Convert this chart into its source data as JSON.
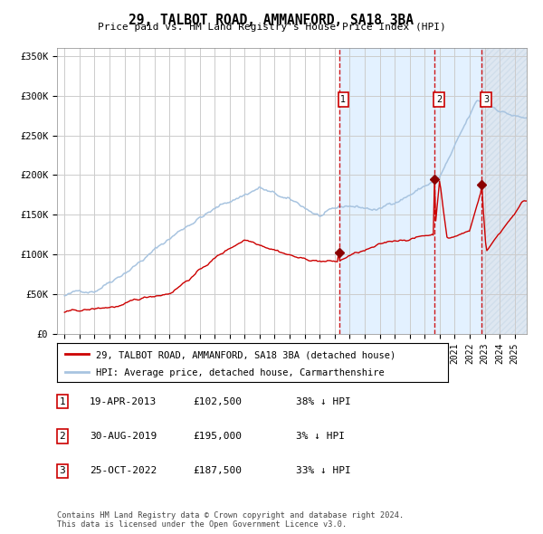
{
  "title": "29, TALBOT ROAD, AMMANFORD, SA18 3BA",
  "subtitle": "Price paid vs. HM Land Registry's House Price Index (HPI)",
  "ylabel_ticks": [
    "£0",
    "£50K",
    "£100K",
    "£150K",
    "£200K",
    "£250K",
    "£300K",
    "£350K"
  ],
  "ytick_vals": [
    0,
    50000,
    100000,
    150000,
    200000,
    250000,
    300000,
    350000
  ],
  "ylim": [
    0,
    360000
  ],
  "xlim_start": 1994.5,
  "xlim_end": 2025.8,
  "sale_dates": [
    2013.29,
    2019.66,
    2022.81
  ],
  "sale_prices": [
    102500,
    195000,
    187500
  ],
  "sale_labels": [
    "1",
    "2",
    "3"
  ],
  "sale_info": [
    {
      "label": "1",
      "date": "19-APR-2013",
      "price": "£102,500",
      "pct": "38% ↓ HPI"
    },
    {
      "label": "2",
      "date": "30-AUG-2019",
      "price": "£195,000",
      "pct": "3% ↓ HPI"
    },
    {
      "label": "3",
      "date": "25-OCT-2022",
      "price": "£187,500",
      "pct": "33% ↓ HPI"
    }
  ],
  "hpi_line_color": "#a8c4e0",
  "price_line_color": "#cc0000",
  "marker_color": "#8b0000",
  "vline_color": "#cc0000",
  "shade_color": "#ddeeff",
  "hatch_color": "#c8d8e8",
  "grid_color": "#cccccc",
  "bg_color": "#ffffff",
  "legend_box_color": "#cc0000",
  "footer_text": "Contains HM Land Registry data © Crown copyright and database right 2024.\nThis data is licensed under the Open Government Licence v3.0.",
  "legend_line1": "29, TALBOT ROAD, AMMANFORD, SA18 3BA (detached house)",
  "legend_line2": "HPI: Average price, detached house, Carmarthenshire"
}
